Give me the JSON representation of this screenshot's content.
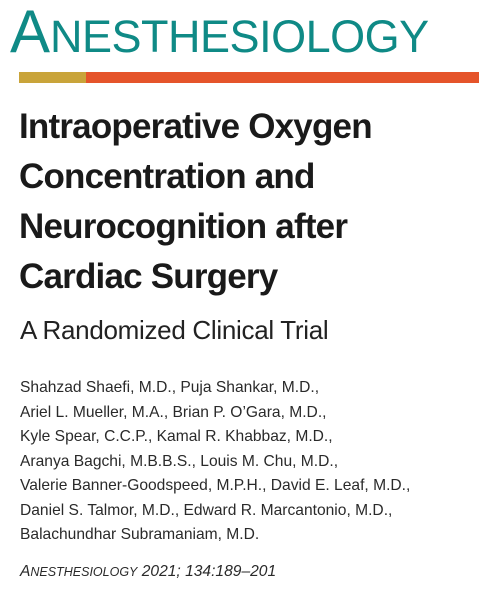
{
  "journal": {
    "name_initial": "A",
    "name_rest": "NESTHESIOLOGY",
    "color": "#0f8a86",
    "accent_colors": [
      "#c9a43a",
      "#e5542a"
    ]
  },
  "article": {
    "title_lines": [
      "Intraoperative Oxygen",
      "Concentration and",
      "Neurocognition after",
      "Cardiac Surgery"
    ],
    "subtitle": "A Randomized Clinical Trial",
    "author_lines": [
      "Shahzad Shaefi, M.D., Puja Shankar, M.D.,",
      "Ariel L. Mueller, M.A., Brian P. O’Gara, M.D.,",
      "Kyle Spear, C.C.P., Kamal R. Khabbaz, M.D.,",
      "Aranya Bagchi, M.B.B.S., Louis M. Chu, M.D.,",
      "Valerie Banner-Goodspeed, M.P.H., David E. Leaf, M.D.,",
      "Daniel S. Talmor, M.D., Edward R. Marcantonio, M.D.,",
      "Balachundhar Subramaniam, M.D."
    ]
  },
  "citation": {
    "journal_initial": "A",
    "journal_rest": "NESTHESIOLOGY",
    "details": " 2021; 134:189–201"
  }
}
